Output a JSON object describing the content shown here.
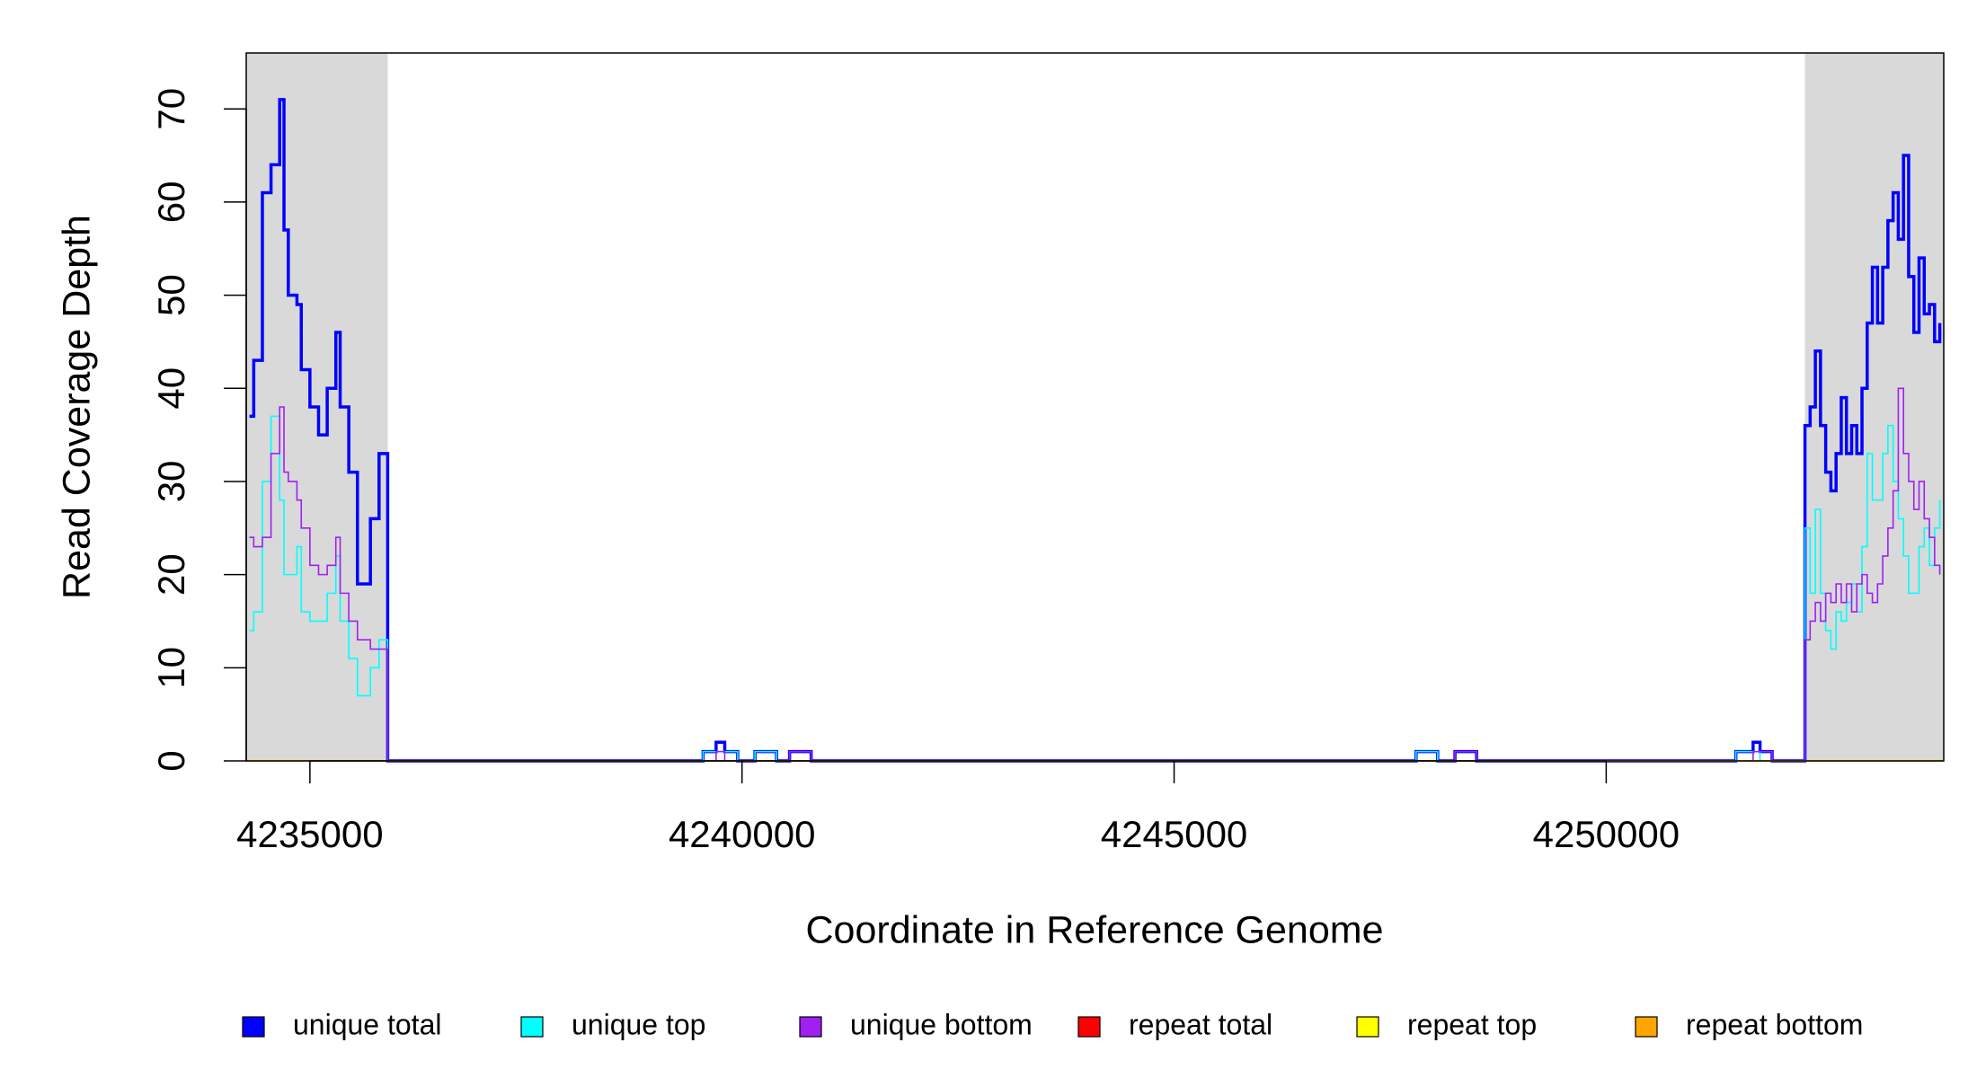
{
  "chart_data": {
    "type": "line",
    "xlabel": "Coordinate in Reference Genome",
    "ylabel": "Read Coverage Depth",
    "xlim": [
      4234263,
      4253906
    ],
    "ylim": [
      0,
      76
    ],
    "xticks": [
      4235000,
      4240000,
      4245000,
      4250000
    ],
    "yticks": [
      0,
      10,
      20,
      30,
      40,
      50,
      60,
      70
    ],
    "grid": false,
    "step": true,
    "legend_position": "bottom",
    "shaded_regions": [
      [
        4234263,
        4235900
      ],
      [
        4252300,
        4253906
      ]
    ],
    "shade_color": "#d9d9d9",
    "x": [
      4234300,
      4234350,
      4234450,
      4234550,
      4234650,
      4234700,
      4234750,
      4234850,
      4234900,
      4235000,
      4235100,
      4235200,
      4235300,
      4235350,
      4235450,
      4235550,
      4235700,
      4235800,
      4235900,
      4239550,
      4239700,
      4239800,
      4239950,
      4240150,
      4240400,
      4240550,
      4240800,
      4247800,
      4248050,
      4248250,
      4248500,
      4251500,
      4251700,
      4251780,
      4251920,
      4252300,
      4252360,
      4252420,
      4252480,
      4252540,
      4252600,
      4252660,
      4252720,
      4252780,
      4252840,
      4252900,
      4252960,
      4253020,
      4253080,
      4253140,
      4253200,
      4253260,
      4253320,
      4253380,
      4253440,
      4253500,
      4253560,
      4253620,
      4253680,
      4253740,
      4253800,
      4253860
    ],
    "series": [
      {
        "name": "unique total",
        "color": "#0000ff",
        "width": 3.5,
        "values": [
          37,
          43,
          61,
          64,
          71,
          57,
          50,
          49,
          42,
          38,
          35,
          40,
          46,
          38,
          31,
          19,
          26,
          33,
          0,
          1,
          2,
          1,
          0,
          1,
          0,
          1,
          0,
          1,
          0,
          1,
          0,
          1,
          2,
          1,
          0,
          36,
          38,
          44,
          36,
          31,
          29,
          33,
          39,
          33,
          36,
          33,
          40,
          47,
          53,
          47,
          53,
          58,
          61,
          56,
          65,
          52,
          46,
          54,
          48,
          49,
          45,
          47
        ]
      },
      {
        "name": "unique top",
        "color": "#00ffff",
        "width": 1.6,
        "values": [
          14,
          16,
          30,
          37,
          28,
          20,
          20,
          23,
          16,
          15,
          15,
          18,
          22,
          15,
          11,
          7,
          10,
          13,
          0,
          1,
          1,
          1,
          0,
          1,
          0,
          0,
          0,
          1,
          0,
          0,
          0,
          1,
          1,
          0,
          0,
          25,
          18,
          27,
          18,
          14,
          12,
          16,
          15,
          17,
          19,
          16,
          23,
          33,
          28,
          28,
          33,
          36,
          30,
          26,
          22,
          18,
          18,
          23,
          25,
          21,
          25,
          28
        ]
      },
      {
        "name": "unique bottom",
        "color": "#a020f0",
        "width": 1.6,
        "values": [
          24,
          23,
          24,
          33,
          38,
          31,
          30,
          28,
          25,
          21,
          20,
          21,
          24,
          18,
          15,
          13,
          12,
          12,
          0,
          0,
          1,
          0,
          0,
          0,
          0,
          1,
          0,
          0,
          0,
          1,
          0,
          0,
          1,
          1,
          0,
          13,
          15,
          17,
          15,
          18,
          17,
          19,
          17,
          19,
          16,
          19,
          20,
          18,
          17,
          19,
          22,
          25,
          29,
          40,
          33,
          30,
          27,
          30,
          26,
          24,
          21,
          20
        ]
      },
      {
        "name": "repeat total",
        "color": "#ff0000",
        "width": 1.6,
        "x": [
          4234263,
          4253906
        ],
        "values": [
          0,
          0
        ]
      },
      {
        "name": "repeat top",
        "color": "#ffff00",
        "width": 1.6,
        "x": [
          4234263,
          4253906
        ],
        "values": [
          0,
          0
        ]
      },
      {
        "name": "repeat bottom",
        "color": "#ffa500",
        "width": 1.6,
        "x": [
          4234263,
          4253906
        ],
        "values": [
          0,
          0
        ]
      }
    ]
  }
}
